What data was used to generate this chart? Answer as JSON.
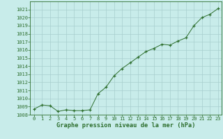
{
  "x": [
    0,
    1,
    2,
    3,
    4,
    5,
    6,
    7,
    8,
    9,
    10,
    11,
    12,
    13,
    14,
    15,
    16,
    17,
    18,
    19,
    20,
    21,
    22,
    23
  ],
  "y": [
    1008.7,
    1009.2,
    1009.1,
    1008.4,
    1008.6,
    1008.5,
    1008.5,
    1008.6,
    1010.6,
    1011.4,
    1012.8,
    1013.7,
    1014.4,
    1015.1,
    1015.8,
    1016.2,
    1016.7,
    1016.6,
    1017.1,
    1017.5,
    1019.0,
    1020.0,
    1020.4,
    1021.1
  ],
  "ylim": [
    1008,
    1022
  ],
  "xlim": [
    -0.5,
    23.5
  ],
  "yticks": [
    1008,
    1009,
    1010,
    1011,
    1012,
    1013,
    1014,
    1015,
    1016,
    1017,
    1018,
    1019,
    1020,
    1021
  ],
  "xticks": [
    0,
    1,
    2,
    3,
    4,
    5,
    6,
    7,
    8,
    9,
    10,
    11,
    12,
    13,
    14,
    15,
    16,
    17,
    18,
    19,
    20,
    21,
    22,
    23
  ],
  "line_color": "#2d6e2d",
  "marker_color": "#2d6e2d",
  "bg_color": "#c8ecea",
  "grid_color": "#a8cece",
  "xlabel": "Graphe pression niveau de la mer (hPa)",
  "xlabel_color": "#2d6e2d",
  "tick_color": "#2d6e2d",
  "border_color": "#2d6e2d",
  "tick_fontsize": 5.0,
  "xlabel_fontsize": 6.2
}
